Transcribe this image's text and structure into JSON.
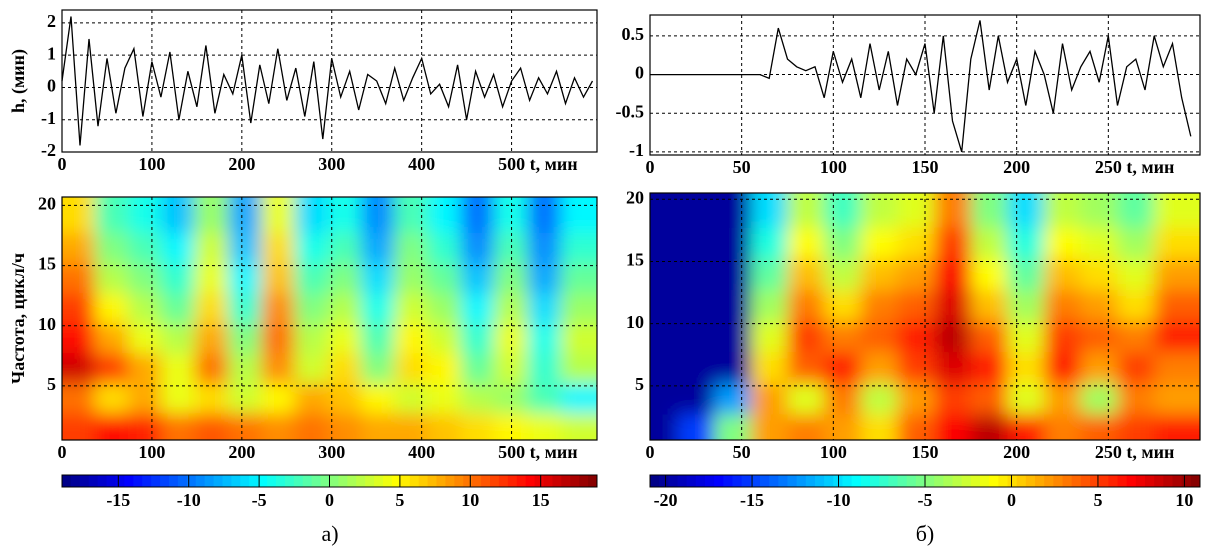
{
  "chart_data": [
    {
      "type": "line",
      "ylabel": "h, (мин)",
      "xlabel": "t, мин",
      "xlim": [
        0,
        595
      ],
      "ylim": [
        -2,
        2.4
      ],
      "xticks": [
        0,
        100,
        200,
        300,
        400,
        500
      ],
      "yticks": [
        -2,
        -1,
        0,
        1,
        2
      ],
      "grid": true,
      "series": [
        {
          "color": "#000000",
          "x": [
            0,
            10,
            20,
            30,
            40,
            50,
            60,
            70,
            80,
            90,
            100,
            110,
            120,
            130,
            140,
            150,
            160,
            170,
            180,
            190,
            200,
            210,
            220,
            230,
            240,
            250,
            260,
            270,
            280,
            290,
            300,
            310,
            320,
            330,
            340,
            350,
            360,
            370,
            380,
            390,
            400,
            410,
            420,
            430,
            440,
            450,
            460,
            470,
            480,
            490,
            500,
            510,
            520,
            530,
            540,
            550,
            560,
            570,
            580,
            590
          ],
          "values": [
            0.2,
            2.2,
            -1.8,
            1.5,
            -1.2,
            0.9,
            -0.8,
            0.6,
            1.2,
            -0.9,
            0.8,
            -0.3,
            1.1,
            -1.0,
            0.5,
            -0.6,
            1.3,
            -0.8,
            0.4,
            -0.2,
            1.0,
            -1.1,
            0.7,
            -0.5,
            1.2,
            -0.4,
            0.6,
            -0.9,
            0.8,
            -1.6,
            0.9,
            -0.3,
            0.5,
            -0.7,
            0.4,
            0.2,
            -0.5,
            0.6,
            -0.4,
            0.3,
            0.9,
            -0.2,
            0.1,
            -0.6,
            0.7,
            -1.0,
            0.5,
            -0.3,
            0.4,
            -0.6,
            0.2,
            0.6,
            -0.4,
            0.3,
            -0.2,
            0.5,
            -0.5,
            0.3,
            -0.3,
            0.2
          ]
        }
      ]
    },
    {
      "type": "heatmap",
      "ylabel": "Частота, цикл/ч",
      "xlabel": "t, мин",
      "xlim": [
        0,
        595
      ],
      "ylim": [
        0.5,
        20.7
      ],
      "xticks": [
        0,
        100,
        200,
        300,
        400,
        500
      ],
      "yticks": [
        5,
        10,
        15,
        20
      ],
      "grid": true,
      "x": [
        18,
        55,
        92,
        129,
        166,
        203,
        240,
        277,
        314,
        351,
        388,
        425,
        462,
        499,
        536,
        573
      ],
      "y": [
        1.5,
        4,
        6.5,
        9,
        11.5,
        14,
        16.5,
        19
      ],
      "z": [
        [
          12,
          14,
          13,
          10,
          11,
          10,
          9,
          10,
          9,
          8,
          8,
          7,
          6,
          5,
          4,
          3
        ],
        [
          10,
          6,
          8,
          4,
          6,
          3,
          5,
          8,
          7,
          5,
          3,
          4,
          2,
          1,
          -2,
          -5
        ],
        [
          16,
          12,
          8,
          4,
          10,
          2,
          9,
          3,
          6,
          0,
          6,
          5,
          -1,
          3,
          -3,
          2
        ],
        [
          14,
          8,
          4,
          2,
          8,
          0,
          10,
          2,
          4,
          -2,
          5,
          3,
          -3,
          4,
          -4,
          3
        ],
        [
          12,
          5,
          2,
          -1,
          6,
          -3,
          9,
          0,
          2,
          -4,
          3,
          1,
          -5,
          2,
          -6,
          1
        ],
        [
          10,
          2,
          0,
          -3,
          4,
          -5,
          7,
          -2,
          0,
          -6,
          1,
          -1,
          -7,
          0,
          -8,
          -1
        ],
        [
          8,
          0,
          -2,
          -5,
          3,
          -7,
          6,
          -4,
          -2,
          -8,
          0,
          -3,
          -9,
          -2,
          -9,
          -3
        ],
        [
          6,
          -2,
          -4,
          -7,
          1,
          -8,
          4,
          -6,
          -4,
          -9,
          -2,
          -5,
          -10,
          -4,
          -10,
          -5
        ]
      ],
      "colorbar": {
        "lim": [
          -19,
          19
        ],
        "ticks": [
          -15,
          -10,
          -5,
          0,
          5,
          10,
          15
        ]
      }
    },
    {
      "type": "line",
      "xlabel": "t, мин",
      "xlim": [
        0,
        300
      ],
      "ylim": [
        -1.04,
        0.77
      ],
      "xticks": [
        0,
        50,
        100,
        150,
        200,
        250
      ],
      "yticks": [
        -1,
        -0.5,
        0,
        0.5
      ],
      "grid": true,
      "series": [
        {
          "color": "#000000",
          "x": [
            0,
            5,
            10,
            15,
            20,
            25,
            30,
            35,
            40,
            45,
            50,
            55,
            60,
            65,
            70,
            75,
            80,
            85,
            90,
            95,
            100,
            105,
            110,
            115,
            120,
            125,
            130,
            135,
            140,
            145,
            150,
            155,
            160,
            165,
            170,
            175,
            180,
            185,
            190,
            195,
            200,
            205,
            210,
            215,
            220,
            225,
            230,
            235,
            240,
            245,
            250,
            255,
            260,
            265,
            270,
            275,
            280,
            285,
            290,
            295
          ],
          "values": [
            0,
            0,
            0,
            0,
            0,
            0,
            0,
            0,
            0,
            0,
            0,
            0,
            0,
            -0.05,
            0.6,
            0.2,
            0.1,
            0.05,
            0.1,
            -0.3,
            0.3,
            -0.1,
            0.2,
            -0.3,
            0.4,
            -0.2,
            0.3,
            -0.4,
            0.2,
            0.0,
            0.4,
            -0.5,
            0.5,
            -0.6,
            -1.0,
            0.2,
            0.7,
            -0.2,
            0.5,
            -0.1,
            0.2,
            -0.4,
            0.3,
            0.0,
            -0.5,
            0.4,
            -0.2,
            0.1,
            0.3,
            -0.1,
            0.5,
            -0.4,
            0.1,
            0.2,
            -0.2,
            0.5,
            0.1,
            0.4,
            -0.3,
            -0.8
          ]
        }
      ]
    },
    {
      "type": "heatmap",
      "xlabel": "t, мин",
      "xlim": [
        0,
        300
      ],
      "ylim": [
        0.65,
        20.5
      ],
      "xticks": [
        0,
        50,
        100,
        150,
        200,
        250
      ],
      "yticks": [
        5,
        10,
        15,
        20
      ],
      "grid": true,
      "x": [
        5,
        25,
        45,
        65,
        85,
        105,
        125,
        145,
        165,
        185,
        205,
        225,
        245,
        265,
        285
      ],
      "y": [
        1.5,
        4,
        6.5,
        9,
        11.5,
        14,
        16.5,
        19
      ],
      "z": [
        [
          -20,
          -15,
          -5,
          2,
          3,
          2,
          0,
          4,
          7,
          9,
          6,
          3,
          4,
          5,
          6
        ],
        [
          -20,
          -20,
          -12,
          2,
          -2,
          3,
          -3,
          2,
          5,
          4,
          -2,
          2,
          -4,
          3,
          2
        ],
        [
          -20,
          -20,
          -20,
          0,
          4,
          6,
          2,
          5,
          8,
          6,
          0,
          6,
          2,
          5,
          3
        ],
        [
          -20,
          -20,
          -20,
          -2,
          5,
          3,
          4,
          6,
          9,
          4,
          -2,
          5,
          4,
          3,
          6
        ],
        [
          -20,
          -20,
          -20,
          -4,
          3,
          0,
          3,
          4,
          8,
          1,
          -4,
          3,
          2,
          0,
          4
        ],
        [
          -20,
          -20,
          -20,
          -6,
          1,
          -3,
          1,
          2,
          7,
          -1,
          -6,
          1,
          0,
          -2,
          2
        ],
        [
          -20,
          -20,
          -20,
          -8,
          -1,
          -5,
          -1,
          0,
          5,
          -3,
          -8,
          -1,
          -2,
          -4,
          0
        ],
        [
          -20,
          -20,
          -20,
          -10,
          -3,
          -7,
          -3,
          -2,
          3,
          -5,
          -10,
          -3,
          -4,
          -6,
          -2
        ]
      ],
      "colorbar": {
        "lim": [
          -20.9,
          10.9
        ],
        "ticks": [
          -20,
          -15,
          -10,
          -5,
          0,
          5,
          10
        ]
      }
    }
  ],
  "panel_labels": [
    "а)",
    "б)"
  ]
}
